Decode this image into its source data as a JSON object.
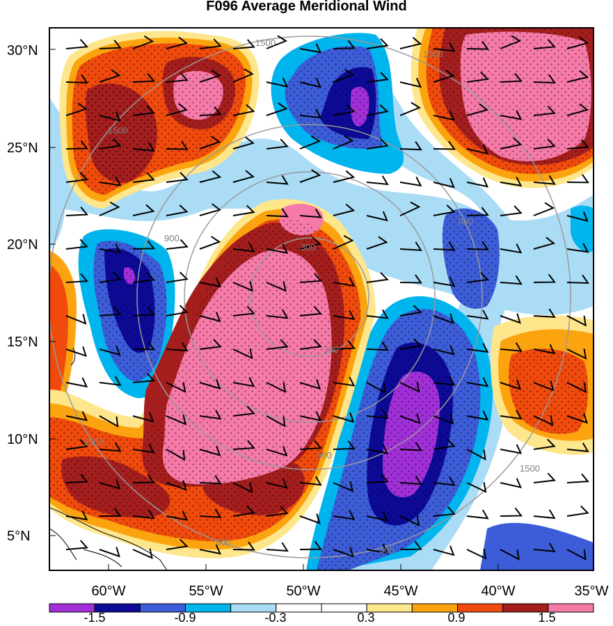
{
  "title": "F096 Average Meridional Wind",
  "lat_labels": [
    "30°N",
    "25°N",
    "20°N",
    "15°N",
    "10°N",
    "5°N"
  ],
  "lon_labels": [
    "60°W",
    "55°W",
    "50°W",
    "45°W",
    "40°W",
    "35°W"
  ],
  "colorbar": {
    "colors": [
      "#a02fd8",
      "#0c0a96",
      "#3c5cd8",
      "#00b4ee",
      "#aadcf6",
      "#ffffff",
      "#ffffff",
      "#fee68c",
      "#fba40f",
      "#f04a0c",
      "#a51e1e",
      "#f57aa8"
    ],
    "labels": [
      "-1.5",
      "-0.9",
      "-0.3",
      "0.3",
      "0.9",
      "1.5"
    ]
  },
  "ring_labels": [
    "300",
    "900",
    "1500",
    "300",
    "900",
    "1500",
    "900",
    "1500",
    "300",
    "900",
    "1500",
    "900",
    "1500"
  ],
  "colors": {
    "pink": "#f57aa8",
    "darkred": "#a51e1e",
    "red": "#f04a0c",
    "orange": "#fba40f",
    "yellow": "#fee68c",
    "white": "#ffffff",
    "lightblue": "#aadcf6",
    "cyan": "#00b4ee",
    "blue": "#3c5cd8",
    "navy": "#0c0a96",
    "purple": "#a02fd8",
    "ring": "#9a9a9a"
  }
}
